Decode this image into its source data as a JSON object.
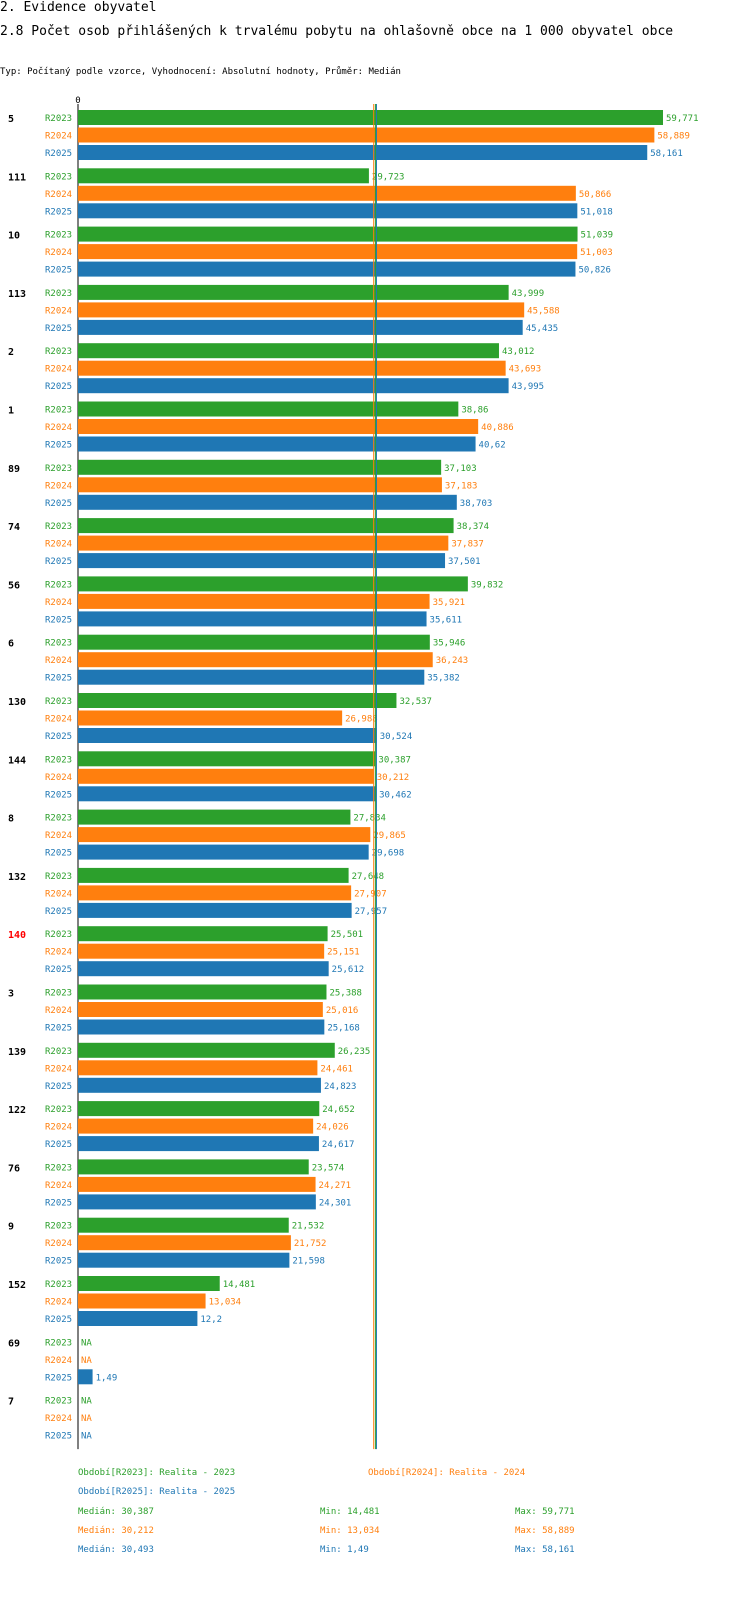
{
  "header": {
    "section": "2. Evidence obyvatel",
    "title": "2.8 Počet osob přihlášených k trvalému pobytu na ohlašovně obce na 1 000 obyvatel obce",
    "subtitle": "Typ: Počítaný podle vzorce, Vyhodnocení: Absolutní hodnoty, Průměr: Medián"
  },
  "colors": {
    "R2023": "#2ca02c",
    "R2024": "#ff7f0e",
    "R2025": "#1f77b4",
    "highlight": "#ff0000"
  },
  "chart_data": {
    "type": "bar",
    "orientation": "horizontal",
    "axis_zero_label": "0",
    "xlim": [
      0,
      59.771
    ],
    "series_names": [
      "R2023",
      "R2024",
      "R2025"
    ],
    "highlight_category": "140",
    "medians": [
      30.387,
      30.212,
      30.493
    ],
    "groups": [
      {
        "category": "5",
        "values": [
          59.771,
          58.889,
          58.161
        ],
        "labels": [
          "59,771",
          "58,889",
          "58,161"
        ]
      },
      {
        "category": "111",
        "values": [
          29.723,
          50.866,
          51.018
        ],
        "labels": [
          "29,723",
          "50,866",
          "51,018"
        ]
      },
      {
        "category": "10",
        "values": [
          51.039,
          51.003,
          50.826
        ],
        "labels": [
          "51,039",
          "51,003",
          "50,826"
        ]
      },
      {
        "category": "113",
        "values": [
          43.999,
          45.588,
          45.435
        ],
        "labels": [
          "43,999",
          "45,588",
          "45,435"
        ]
      },
      {
        "category": "2",
        "values": [
          43.012,
          43.693,
          43.995
        ],
        "labels": [
          "43,012",
          "43,693",
          "43,995"
        ]
      },
      {
        "category": "1",
        "values": [
          38.86,
          40.886,
          40.62
        ],
        "labels": [
          "38,86",
          "40,886",
          "40,62"
        ]
      },
      {
        "category": "89",
        "values": [
          37.103,
          37.183,
          38.703
        ],
        "labels": [
          "37,103",
          "37,183",
          "38,703"
        ]
      },
      {
        "category": "74",
        "values": [
          38.374,
          37.837,
          37.501
        ],
        "labels": [
          "38,374",
          "37,837",
          "37,501"
        ]
      },
      {
        "category": "56",
        "values": [
          39.832,
          35.921,
          35.611
        ],
        "labels": [
          "39,832",
          "35,921",
          "35,611"
        ]
      },
      {
        "category": "6",
        "values": [
          35.946,
          36.243,
          35.382
        ],
        "labels": [
          "35,946",
          "36,243",
          "35,382"
        ]
      },
      {
        "category": "130",
        "values": [
          32.537,
          26.988,
          30.524
        ],
        "labels": [
          "32,537",
          "26,988",
          "30,524"
        ]
      },
      {
        "category": "144",
        "values": [
          30.387,
          30.212,
          30.462
        ],
        "labels": [
          "30,387",
          "30,212",
          "30,462"
        ]
      },
      {
        "category": "8",
        "values": [
          27.834,
          29.865,
          29.698
        ],
        "labels": [
          "27,834",
          "29,865",
          "29,698"
        ]
      },
      {
        "category": "132",
        "values": [
          27.648,
          27.907,
          27.957
        ],
        "labels": [
          "27,648",
          "27,907",
          "27,957"
        ]
      },
      {
        "category": "140",
        "values": [
          25.501,
          25.151,
          25.612
        ],
        "labels": [
          "25,501",
          "25,151",
          "25,612"
        ]
      },
      {
        "category": "3",
        "values": [
          25.388,
          25.016,
          25.168
        ],
        "labels": [
          "25,388",
          "25,016",
          "25,168"
        ]
      },
      {
        "category": "139",
        "values": [
          26.235,
          24.461,
          24.823
        ],
        "labels": [
          "26,235",
          "24,461",
          "24,823"
        ]
      },
      {
        "category": "122",
        "values": [
          24.652,
          24.026,
          24.617
        ],
        "labels": [
          "24,652",
          "24,026",
          "24,617"
        ]
      },
      {
        "category": "76",
        "values": [
          23.574,
          24.271,
          24.301
        ],
        "labels": [
          "23,574",
          "24,271",
          "24,301"
        ]
      },
      {
        "category": "9",
        "values": [
          21.532,
          21.752,
          21.598
        ],
        "labels": [
          "21,532",
          "21,752",
          "21,598"
        ]
      },
      {
        "category": "152",
        "values": [
          14.481,
          13.034,
          12.2
        ],
        "labels": [
          "14,481",
          "13,034",
          "12,2"
        ]
      },
      {
        "category": "69",
        "values": [
          null,
          null,
          1.49
        ],
        "labels": [
          "NA",
          "NA",
          "1,49"
        ]
      },
      {
        "category": "7",
        "values": [
          null,
          null,
          null
        ],
        "labels": [
          "NA",
          "NA",
          "NA"
        ]
      }
    ]
  },
  "legend": {
    "periods": [
      {
        "series": "R2023",
        "text": "Období[R2023]: Realita - 2023"
      },
      {
        "series": "R2024",
        "text": "Období[R2024]: Realita - 2024"
      },
      {
        "series": "R2025",
        "text": "Období[R2025]: Realita - 2025"
      }
    ],
    "stats": [
      {
        "series": "R2023",
        "median": "Medián: 30,387",
        "min": "Min: 14,481",
        "max": "Max: 59,771"
      },
      {
        "series": "R2024",
        "median": "Medián: 30,212",
        "min": "Min: 13,034",
        "max": "Max: 58,889"
      },
      {
        "series": "R2025",
        "median": "Medián: 30,493",
        "min": "Min: 1,49",
        "max": "Max: 58,161"
      }
    ]
  }
}
